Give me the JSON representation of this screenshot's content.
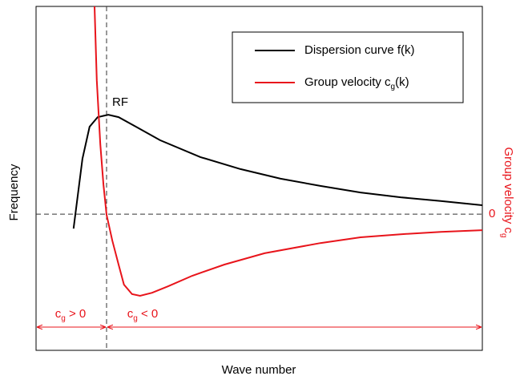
{
  "chart_data": {
    "type": "line",
    "x_label": "Wave number",
    "y_label": "Frequency",
    "y2_label": "Group velocity cg",
    "xlim": [
      0,
      10
    ],
    "ylim": [
      0,
      10
    ],
    "y2lim": [
      -4,
      6.1
    ],
    "y2ticks": [
      0
    ],
    "series": [
      {
        "name": "Dispersion curve f(k)",
        "color": "#000000",
        "x": [
          0.84,
          1.04,
          1.2,
          1.38,
          1.62,
          1.85,
          2.24,
          2.78,
          3.68,
          4.58,
          5.48,
          6.37,
          7.27,
          8.17,
          9.07,
          10
        ],
        "values": [
          3.54,
          5.57,
          6.5,
          6.78,
          6.85,
          6.78,
          6.5,
          6.11,
          5.62,
          5.27,
          4.99,
          4.78,
          4.59,
          4.45,
          4.34,
          4.22
        ]
      },
      {
        "name": "Group velocity cg(k)",
        "color": "#e8141b",
        "axis": "y2",
        "x": [
          1.31,
          1.36,
          1.44,
          1.51,
          1.58,
          1.71,
          1.85,
          1.97,
          2.15,
          2.33,
          2.6,
          2.96,
          3.5,
          4.22,
          5.12,
          6.37,
          7.27,
          8.17,
          9.07,
          10
        ],
        "values": [
          6.1,
          3.93,
          2.05,
          0.87,
          -0.02,
          -0.78,
          -1.48,
          -2.07,
          -2.35,
          -2.4,
          -2.31,
          -2.12,
          -1.81,
          -1.48,
          -1.15,
          -0.85,
          -0.68,
          -0.59,
          -0.52,
          -0.47
        ]
      }
    ],
    "annotations": [
      "RF",
      "cg > 0",
      "cg  < 0"
    ]
  }
}
